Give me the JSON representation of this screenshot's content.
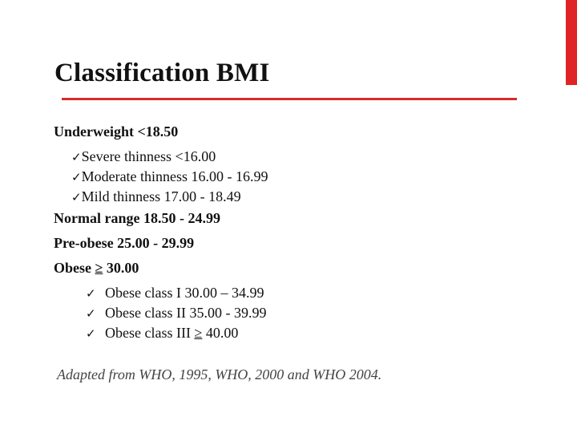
{
  "slide": {
    "title": "Classification BMI",
    "accent_color": "#e02424",
    "check_glyph": "✓",
    "items": {
      "underweight": "Underweight <18.50",
      "severe": "Severe thinness <16.00",
      "moderate": "Moderate thinness 16.00 -  16.99",
      "mild": "Mild thinness 17.00 - 18.49",
      "normal": "Normal range 18.50 - 24.99",
      "preobese": "Pre-obese 25.00 - 29.99",
      "obese_prefix": "Obese ",
      "obese_ge": "≥",
      "obese_value": " 30.00",
      "class1": "Obese class I 30.00 – 34.99",
      "class2": "Obese class II 35.00 - 39.99",
      "class3_prefix": "Obese class III ",
      "class3_ge": "≥",
      "class3_value": " 40.00"
    },
    "source": "Adapted from WHO, 1995, WHO, 2000 and WHO 2004."
  }
}
